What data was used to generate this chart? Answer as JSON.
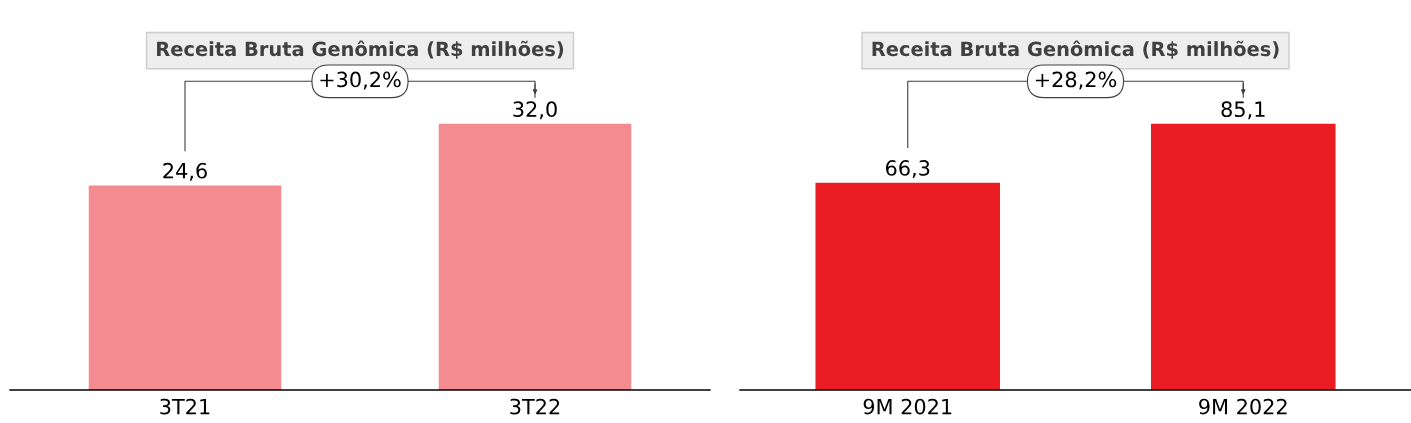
{
  "chart_data": [
    {
      "type": "bar",
      "title": "Receita Bruta Genômica (R$ milhões)",
      "categories": [
        "3T21",
        "3T22"
      ],
      "values": [
        24.6,
        32.0
      ],
      "value_labels": [
        "24,6",
        "32,0"
      ],
      "color": "#f48b91",
      "annotations": [
        "+30,2%"
      ],
      "grid": false,
      "legend": false
    },
    {
      "type": "bar",
      "title": "Receita Bruta Genômica (R$ milhões)",
      "categories": [
        "9M 2021",
        "9M 2022"
      ],
      "values": [
        66.3,
        85.1
      ],
      "value_labels": [
        "66,3",
        "85,1"
      ],
      "color": "#ec1c24",
      "annotations": [
        "+28,2%"
      ],
      "grid": false,
      "legend": false
    }
  ]
}
